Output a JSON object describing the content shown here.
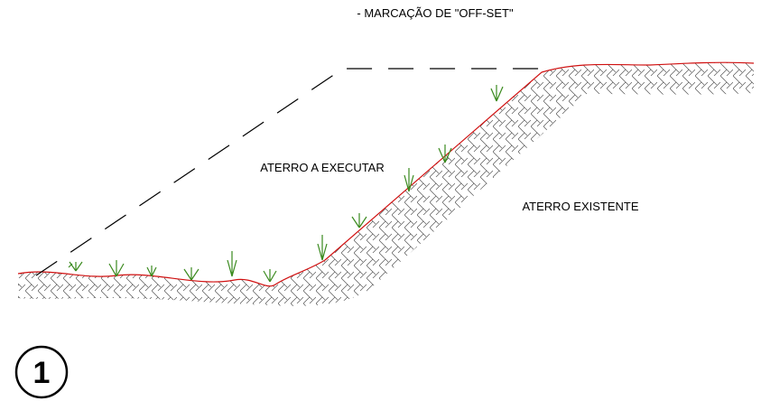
{
  "title": "- MARCAÇÃO DE \"OFF-SET\"",
  "labels": {
    "fill": "ATERRO A EXECUTAR",
    "existing": "ATERRO EXISTENTE"
  },
  "step": "1"
}
